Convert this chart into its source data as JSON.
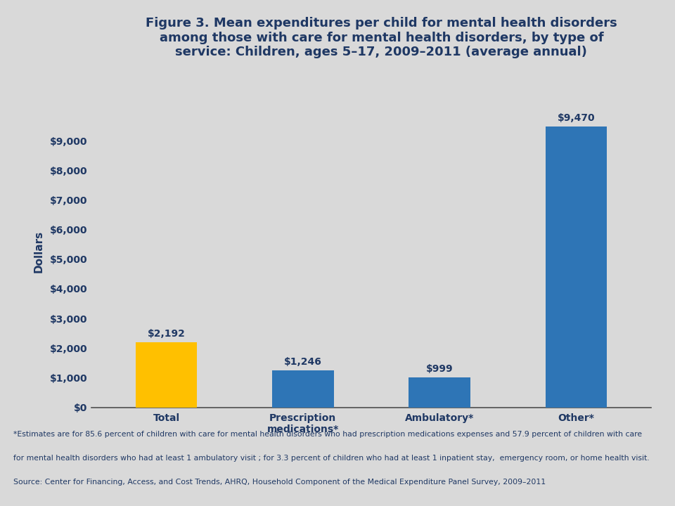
{
  "categories": [
    "Total",
    "Prescription\nmedications*",
    "Ambulatory*",
    "Other*"
  ],
  "values": [
    2192,
    1246,
    999,
    9470
  ],
  "bar_colors": [
    "#FFC000",
    "#2E75B6",
    "#2E75B6",
    "#2E75B6"
  ],
  "bar_labels": [
    "$2,192",
    "$1,246",
    "$999",
    "$9,470"
  ],
  "title_line1": "Figure 3. Mean expenditures per child for mental health disorders",
  "title_line2": "among those with care for mental health disorders, by type of",
  "title_line3": "service: Children, ages 5–17, 2009–2011 (average annual)",
  "ylabel": "Dollars",
  "ylim": [
    0,
    10500
  ],
  "yticks": [
    0,
    1000,
    2000,
    3000,
    4000,
    5000,
    6000,
    7000,
    8000,
    9000
  ],
  "ytick_labels": [
    "$0",
    "$1,000",
    "$2,000",
    "$3,000",
    "$4,000",
    "$5,000",
    "$6,000",
    "$7,000",
    "$8,000",
    "$9,000"
  ],
  "title_color": "#1F3864",
  "axis_color": "#1F3864",
  "bar_label_color": "#1F3864",
  "background_color": "#D9D9D9",
  "plot_bg_color": "#D9D9D9",
  "footnote_line1": "*Estimates are for 85.6 percent of children with care for mental health disorders who had prescription medications expenses and 57.9 percent of children with care",
  "footnote_line2": "for mental health disorders who had at least 1 ambulatory visit ; for 3.3 percent of children who had at least 1 inpatient stay,  emergency room, or home health visit.",
  "source_line": "Source: Center for Financing, Access, and Cost Trends, AHRQ, Household Component of the Medical Expenditure Panel Survey, 2009–2011",
  "separator_color": "#A0A0A0",
  "tick_label_fontsize": 10,
  "bar_label_fontsize": 10,
  "footnote_fontsize": 7.8
}
